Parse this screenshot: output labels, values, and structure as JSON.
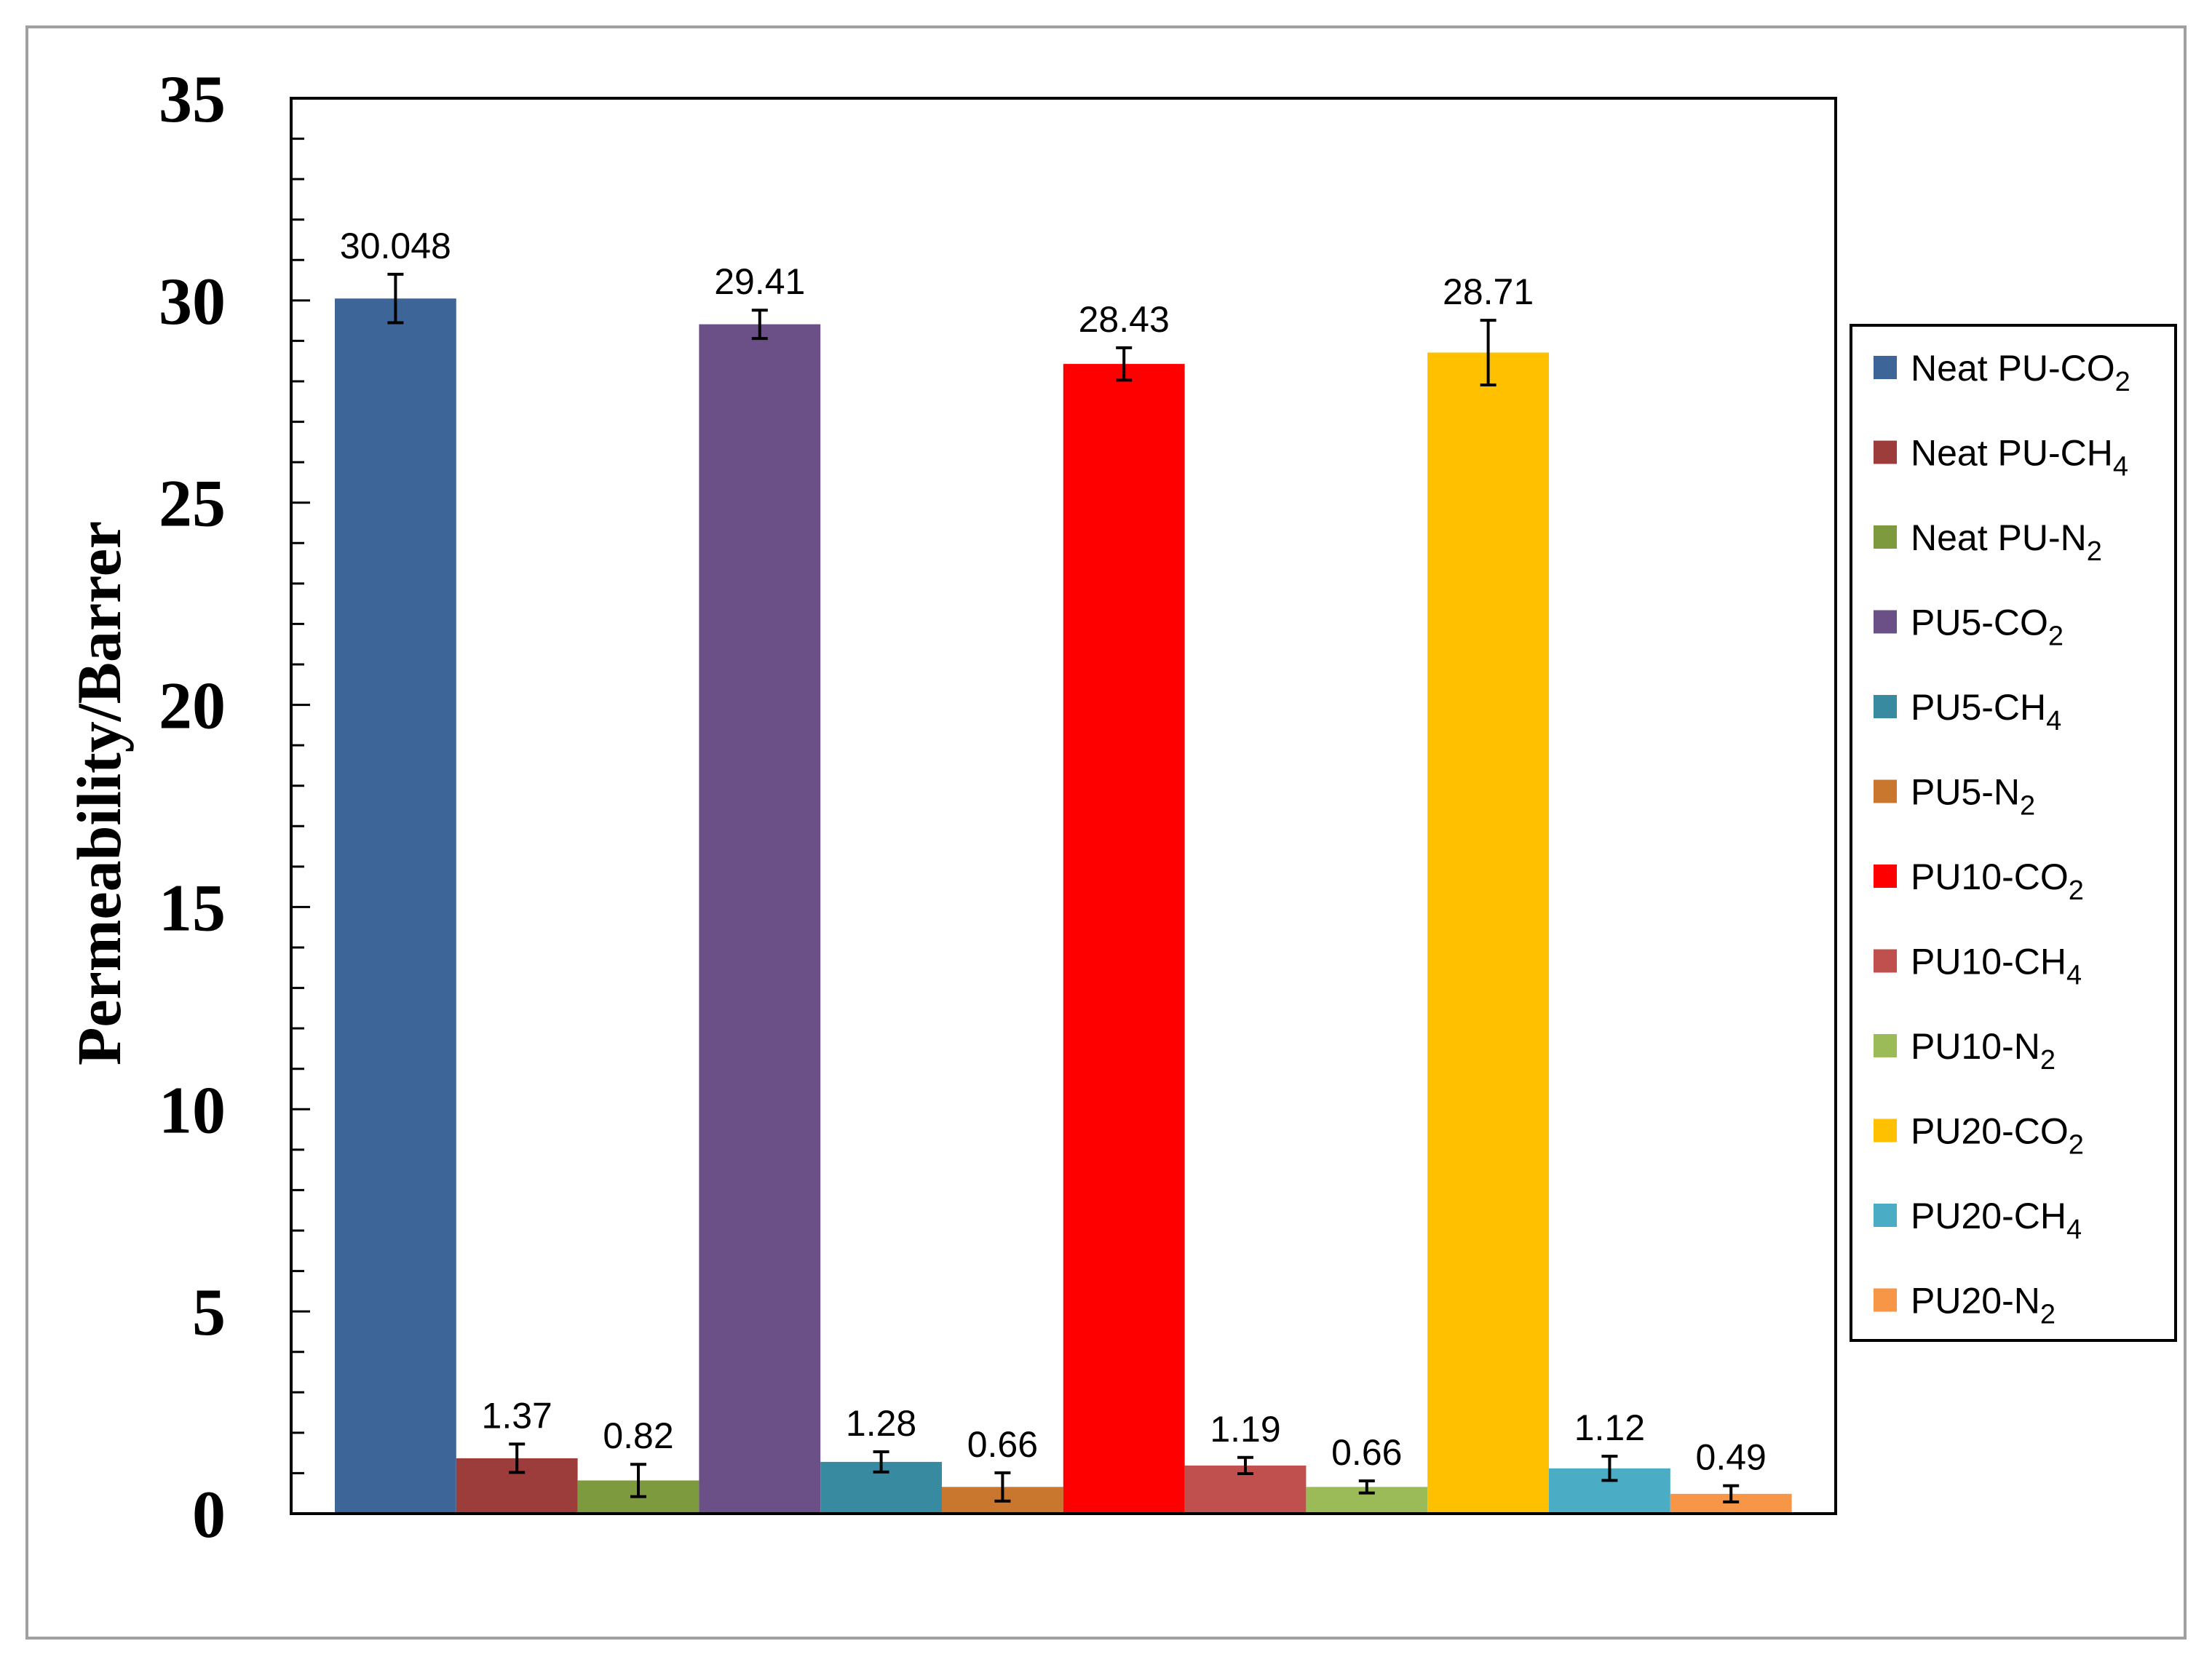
{
  "chart_data": {
    "type": "bar",
    "title": "",
    "ylabel": "Permeability/Barrer",
    "xlabel": "",
    "ylim": [
      0,
      35
    ],
    "y_ticks": [
      0,
      5,
      10,
      15,
      20,
      25,
      30,
      35
    ],
    "y_minor_step": 1,
    "grid": false,
    "legend_position": "right",
    "series": [
      {
        "name": "Neat PU-CO",
        "sub": "2",
        "value": 30.048,
        "label": "30.048",
        "error": 0.6,
        "color": "#3e6597"
      },
      {
        "name": "Neat PU-CH",
        "sub": "4",
        "value": 1.37,
        "label": "1.37",
        "error": 0.35,
        "color": "#9c3d3b"
      },
      {
        "name": "Neat PU-N",
        "sub": "2",
        "value": 0.82,
        "label": "0.82",
        "error": 0.4,
        "color": "#7e9a3f"
      },
      {
        "name": "PU5-CO",
        "sub": "2",
        "value": 29.41,
        "label": "29.41",
        "error": 0.35,
        "color": "#6a5086"
      },
      {
        "name": "PU5-CH",
        "sub": "4",
        "value": 1.28,
        "label": "1.28",
        "error": 0.25,
        "color": "#378a9f"
      },
      {
        "name": "PU5-N",
        "sub": "2",
        "value": 0.66,
        "label": "0.66",
        "error": 0.35,
        "color": "#c9762f"
      },
      {
        "name": "PU10-CO",
        "sub": "2",
        "value": 28.43,
        "label": "28.43",
        "error": 0.4,
        "color": "#ff0000"
      },
      {
        "name": "PU10-CH",
        "sub": "4",
        "value": 1.19,
        "label": "1.19",
        "error": 0.2,
        "color": "#c0504d"
      },
      {
        "name": "PU10-N",
        "sub": "2",
        "value": 0.66,
        "label": "0.66",
        "error": 0.15,
        "color": "#9bbb59"
      },
      {
        "name": "PU20-CO",
        "sub": "2",
        "value": 28.71,
        "label": "28.71",
        "error": 0.8,
        "color": "#ffc000"
      },
      {
        "name": "PU20-CH",
        "sub": "4",
        "value": 1.12,
        "label": "1.12",
        "error": 0.3,
        "color": "#4bacc6"
      },
      {
        "name": "PU20-N",
        "sub": "2",
        "value": 0.49,
        "label": "0.49",
        "error": 0.2,
        "color": "#f79646"
      }
    ]
  }
}
